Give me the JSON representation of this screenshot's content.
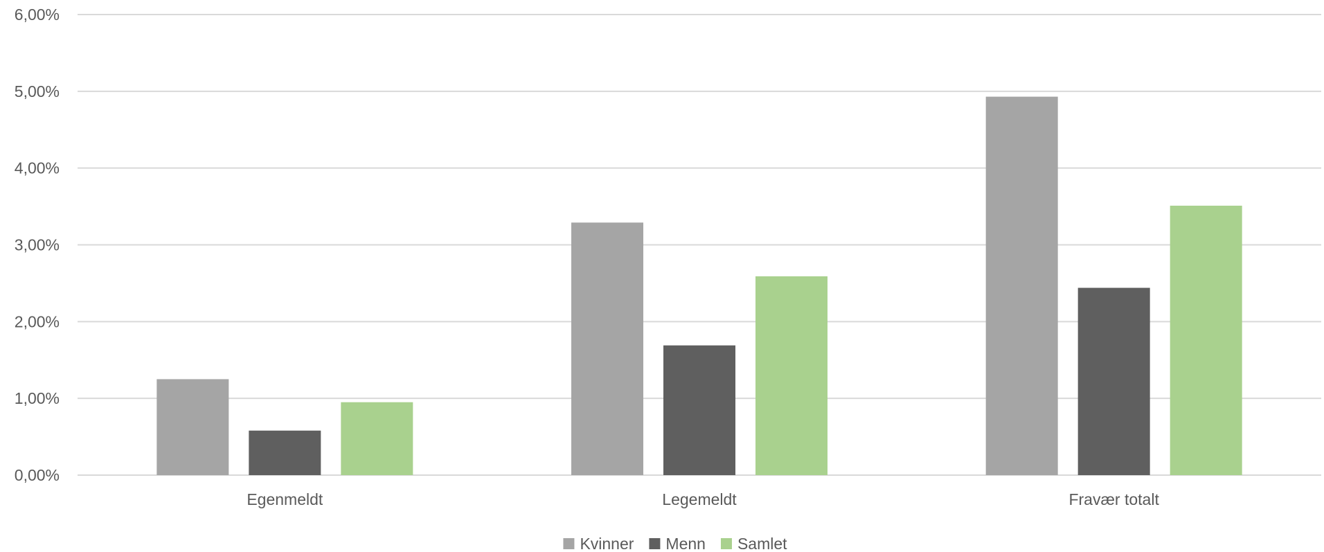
{
  "chart_data": {
    "type": "bar",
    "categories": [
      "Egenmeldt",
      "Legemeldt",
      "Fravær totalt"
    ],
    "series": [
      {
        "name": "Kvinner",
        "values": [
          1.25,
          3.29,
          4.93
        ],
        "color": "#a5a5a5"
      },
      {
        "name": "Menn",
        "values": [
          0.58,
          1.69,
          2.44
        ],
        "color": "#5f5f5f"
      },
      {
        "name": "Samlet",
        "values": [
          0.95,
          2.59,
          3.51
        ],
        "color": "#a9d18e"
      }
    ],
    "yticks": [
      "0,00%",
      "1,00%",
      "2,00%",
      "3,00%",
      "4,00%",
      "5,00%",
      "6,00%"
    ],
    "ylim": [
      0,
      6
    ],
    "grid": true,
    "legend": "bottom-center",
    "title": "",
    "xlabel": "",
    "ylabel": ""
  }
}
